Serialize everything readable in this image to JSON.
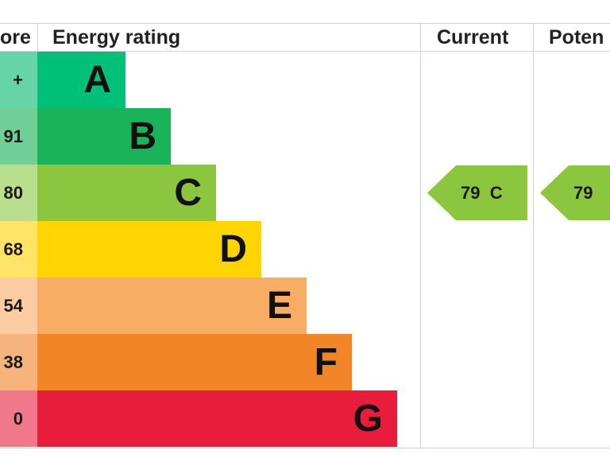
{
  "headers": {
    "score": "ore",
    "rating": "Energy rating",
    "current": "Current",
    "potential": "Poten"
  },
  "chart_data": {
    "type": "bar",
    "categories": [
      "A",
      "B",
      "C",
      "D",
      "E",
      "F",
      "G"
    ],
    "score_labels": [
      "+",
      "91",
      "80",
      "68",
      "54",
      "38",
      "0"
    ],
    "values": [
      1,
      2,
      3,
      4,
      5,
      6,
      7
    ],
    "colors": [
      "#00c07a",
      "#1bb35a",
      "#8cc63e",
      "#ffd400",
      "#f9ac64",
      "#f28527",
      "#e81d3c"
    ],
    "score_colors": [
      "#66d4a6",
      "#6fcf96",
      "#b9df8e",
      "#ffe466",
      "#fbcba1",
      "#f6b47c",
      "#f1778a"
    ],
    "current": {
      "value": 79,
      "band": "C",
      "label": "79  C",
      "color": "#8cc63e"
    },
    "potential": {
      "value": 79,
      "band": "C",
      "label": "79",
      "color": "#8cc63e"
    }
  }
}
